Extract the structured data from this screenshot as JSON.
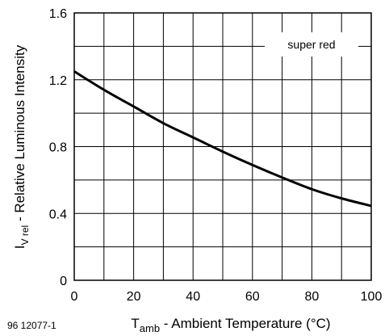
{
  "figure_code": "96 12077-1",
  "chart_data": {
    "type": "line",
    "xlabel_main": "T",
    "xlabel_sub": "amb",
    "xlabel_rest": " - Ambient Temperature (°C)",
    "ylabel_main": "I",
    "ylabel_sub": "V rel",
    "ylabel_rest": " - Relative Luminous Intensity",
    "xlim": [
      0,
      100
    ],
    "ylim": [
      0,
      1.6
    ],
    "x_ticks": [
      "0",
      "20",
      "40",
      "60",
      "80",
      "100"
    ],
    "y_ticks": [
      "0",
      "0.4",
      "0.8",
      "1.2",
      "1.6"
    ],
    "grid": true,
    "legend_position": "top-right",
    "series": [
      {
        "name": "super red",
        "color": "#000000",
        "x": [
          0,
          10,
          20,
          30,
          40,
          50,
          60,
          70,
          80,
          90,
          100
        ],
        "y": [
          1.25,
          1.14,
          1.04,
          0.94,
          0.855,
          0.77,
          0.69,
          0.615,
          0.545,
          0.49,
          0.445
        ]
      }
    ]
  }
}
